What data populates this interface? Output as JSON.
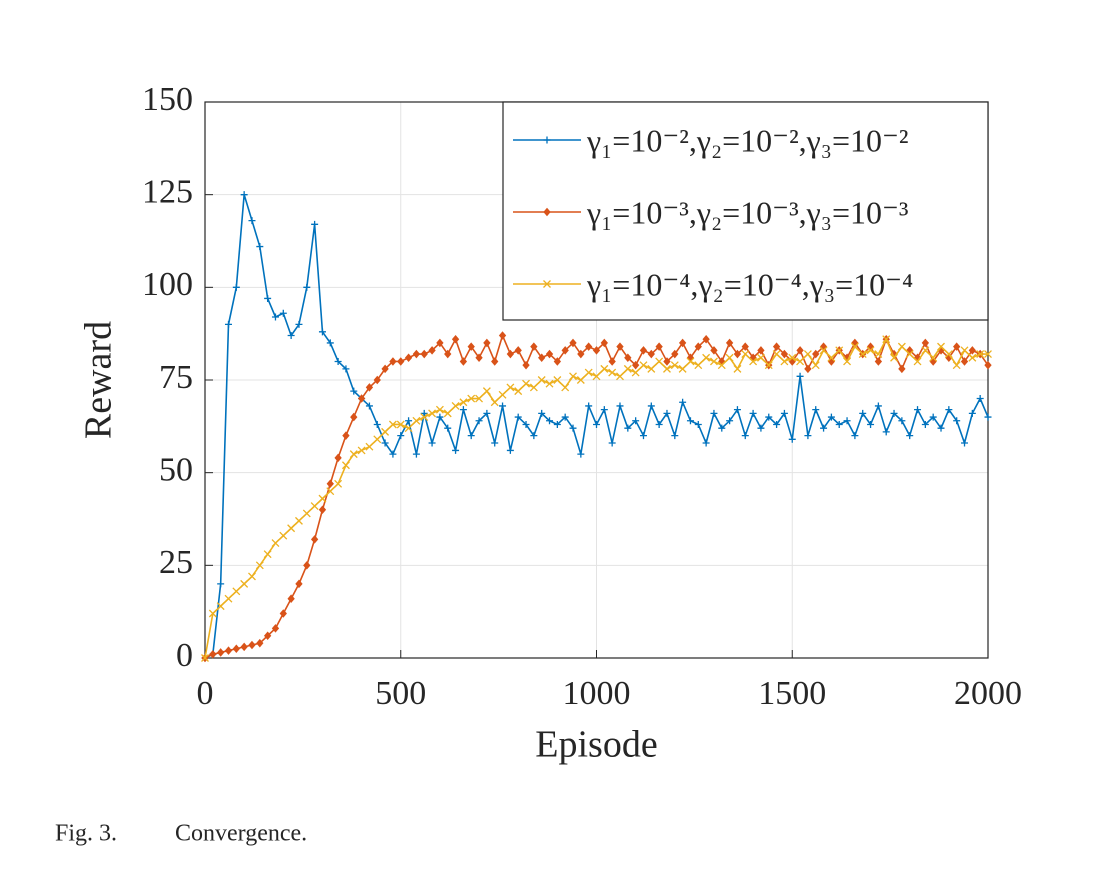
{
  "chart_data": {
    "type": "line",
    "xlabel": "Episode",
    "ylabel": "Reward",
    "x": [
      0,
      20,
      40,
      60,
      80,
      100,
      120,
      140,
      160,
      180,
      200,
      220,
      240,
      260,
      280,
      300,
      320,
      340,
      360,
      380,
      400,
      420,
      440,
      460,
      480,
      500,
      520,
      540,
      560,
      580,
      600,
      620,
      640,
      660,
      680,
      700,
      720,
      740,
      760,
      780,
      800,
      820,
      840,
      860,
      880,
      900,
      920,
      940,
      960,
      980,
      1000,
      1020,
      1040,
      1060,
      1080,
      1100,
      1120,
      1140,
      1160,
      1180,
      1200,
      1220,
      1240,
      1260,
      1280,
      1300,
      1320,
      1340,
      1360,
      1380,
      1400,
      1420,
      1440,
      1460,
      1480,
      1500,
      1520,
      1540,
      1560,
      1580,
      1600,
      1620,
      1640,
      1660,
      1680,
      1700,
      1720,
      1740,
      1760,
      1780,
      1800,
      1820,
      1840,
      1860,
      1880,
      1900,
      1920,
      1940,
      1960,
      1980,
      2000
    ],
    "series": [
      {
        "name": "γ₁=10⁻²,γ₂=10⁻²,γ₃=10⁻²",
        "color": "#0072bd",
        "marker": "plus",
        "values": [
          0,
          1,
          20,
          90,
          100,
          125,
          118,
          111,
          97,
          92,
          93,
          87,
          90,
          100,
          117,
          88,
          85,
          80,
          78,
          72,
          70,
          68,
          63,
          58,
          55,
          60,
          64,
          55,
          66,
          58,
          65,
          62,
          56,
          67,
          60,
          64,
          66,
          58,
          68,
          56,
          65,
          63,
          60,
          66,
          64,
          63,
          65,
          62,
          55,
          68,
          63,
          67,
          58,
          68,
          62,
          64,
          60,
          68,
          63,
          66,
          60,
          69,
          64,
          63,
          58,
          66,
          62,
          64,
          67,
          60,
          66,
          62,
          65,
          63,
          66,
          59,
          76,
          60,
          67,
          62,
          65,
          63,
          64,
          60,
          66,
          63,
          68,
          61,
          66,
          64,
          60,
          67,
          63,
          65,
          62,
          67,
          64,
          58,
          66,
          70,
          65
        ]
      },
      {
        "name": "γ₁=10⁻³,γ₂=10⁻³,γ₃=10⁻³",
        "color": "#d95319",
        "marker": "diamond",
        "values": [
          0,
          1,
          1.5,
          2,
          2.5,
          3,
          3.5,
          4,
          6,
          8,
          12,
          16,
          20,
          25,
          32,
          40,
          47,
          54,
          60,
          65,
          70,
          73,
          75,
          78,
          80,
          80,
          81,
          82,
          82,
          83,
          85,
          82,
          86,
          80,
          84,
          81,
          85,
          80,
          87,
          82,
          83,
          79,
          84,
          81,
          82,
          80,
          83,
          85,
          82,
          84,
          83,
          85,
          80,
          84,
          81,
          79,
          83,
          82,
          84,
          80,
          82,
          85,
          81,
          84,
          86,
          83,
          80,
          85,
          82,
          84,
          81,
          83,
          79,
          84,
          82,
          80,
          83,
          78,
          82,
          84,
          80,
          83,
          81,
          85,
          82,
          84,
          80,
          86,
          82,
          78,
          83,
          81,
          85,
          80,
          83,
          81,
          84,
          80,
          83,
          82,
          79
        ]
      },
      {
        "name": "γ₁=10⁻⁴,γ₂=10⁻⁴,γ₃=10⁻⁴",
        "color": "#edb120",
        "marker": "cross",
        "values": [
          0,
          12,
          14,
          16,
          18,
          20,
          22,
          25,
          28,
          31,
          33,
          35,
          37,
          39,
          41,
          43,
          45,
          47,
          52,
          55,
          56,
          57,
          59,
          61,
          63,
          63,
          62,
          64,
          65,
          66,
          67,
          66,
          68,
          69,
          70,
          70,
          72,
          69,
          71,
          73,
          72,
          74,
          73,
          75,
          74,
          75,
          73,
          76,
          75,
          77,
          76,
          78,
          77,
          76,
          78,
          77,
          79,
          78,
          80,
          78,
          79,
          78,
          80,
          79,
          81,
          80,
          79,
          81,
          78,
          82,
          80,
          81,
          79,
          82,
          80,
          81,
          80,
          82,
          79,
          83,
          81,
          83,
          80,
          84,
          82,
          83,
          82,
          86,
          81,
          84,
          82,
          80,
          83,
          81,
          84,
          82,
          79,
          83,
          81,
          82,
          82
        ]
      }
    ],
    "xlim": [
      0,
      2000
    ],
    "xticks": [
      0,
      500,
      1000,
      1500,
      2000
    ],
    "ylim": [
      0,
      150
    ],
    "yticks": [
      0,
      25,
      50,
      75,
      100,
      125,
      150
    ],
    "grid": true,
    "legend": "upper right"
  },
  "figure_label": "Fig. 3.",
  "caption": "Convergence."
}
